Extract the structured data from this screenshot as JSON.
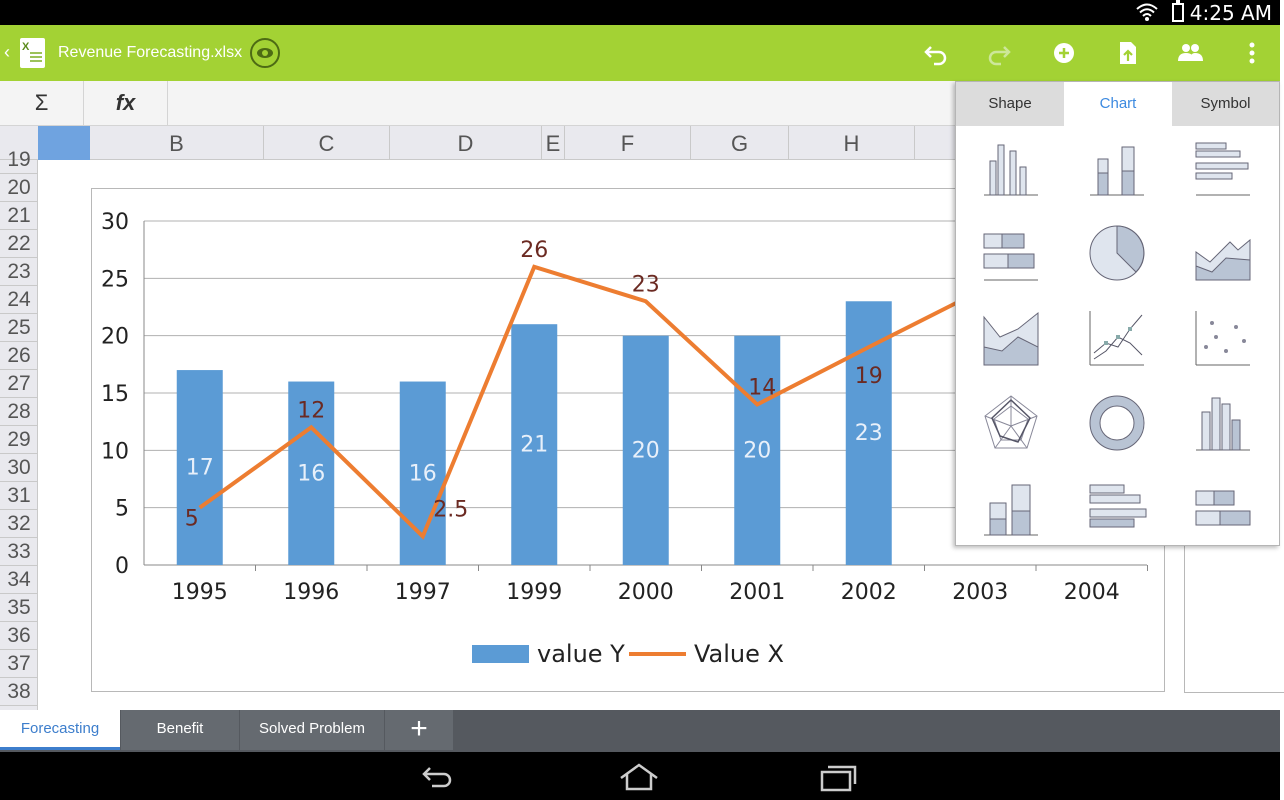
{
  "status": {
    "time": "4:25 AM"
  },
  "appbar": {
    "title": "Revenue Forecasting.xlsx",
    "file_icon_label": "X",
    "actions": [
      "undo-icon",
      "redo-icon",
      "add-circle-icon",
      "save-icon",
      "share-people-icon",
      "more-vert-icon"
    ]
  },
  "formula": {
    "sum_label": "Σ",
    "fx_label": "fx"
  },
  "columns": [
    "B",
    "C",
    "D",
    "E",
    "F",
    "G",
    "H"
  ],
  "rows": [
    "19",
    "20",
    "21",
    "22",
    "23",
    "24",
    "25",
    "26",
    "27",
    "28",
    "29",
    "30",
    "31",
    "32",
    "33",
    "34",
    "35",
    "36",
    "37",
    "38"
  ],
  "popup": {
    "tabs": [
      "Shape",
      "Chart",
      "Symbol"
    ],
    "active_tab": "Chart",
    "chart_types": [
      "clustered-column-icon",
      "stacked-column-icon",
      "clustered-bar-icon",
      "stacked-bar-icon",
      "pie-icon",
      "area-icon",
      "stacked-area-icon",
      "line-markers-icon",
      "scatter-icon",
      "radar-icon",
      "doughnut-icon",
      "3d-column-icon",
      "3d-stacked-column-icon",
      "3d-bar-icon",
      "3d-stacked-bar-icon"
    ]
  },
  "chart_data": {
    "type": "bar",
    "categories": [
      "1995",
      "1996",
      "1997",
      "1999",
      "2000",
      "2001",
      "2002",
      "2003",
      "2004"
    ],
    "ylim": [
      0,
      30
    ],
    "yticks": [
      "0",
      "5",
      "10",
      "15",
      "20",
      "25",
      "30"
    ],
    "series": [
      {
        "name": "value Y",
        "type": "bar",
        "color": "#5b9bd5",
        "values": [
          17,
          16,
          16,
          21,
          20,
          20,
          23,
          null,
          null
        ],
        "labels": [
          "17",
          "16",
          "16",
          "21",
          "20",
          "20",
          "23",
          "",
          ""
        ]
      },
      {
        "name": "Value X",
        "type": "line",
        "color": "#ed7d31",
        "values": [
          5,
          12,
          2.5,
          26,
          23,
          14,
          19,
          null,
          null
        ],
        "labels": [
          "5",
          "12",
          "2.5",
          "26",
          "23",
          "14",
          "19",
          "",
          ""
        ]
      }
    ],
    "legend_position": "bottom",
    "grid": true
  },
  "sheet_tabs": [
    "Forecasting",
    "Benefit",
    "Solved Problem"
  ],
  "sheet_tab_add": "+",
  "active_sheet": "Forecasting"
}
